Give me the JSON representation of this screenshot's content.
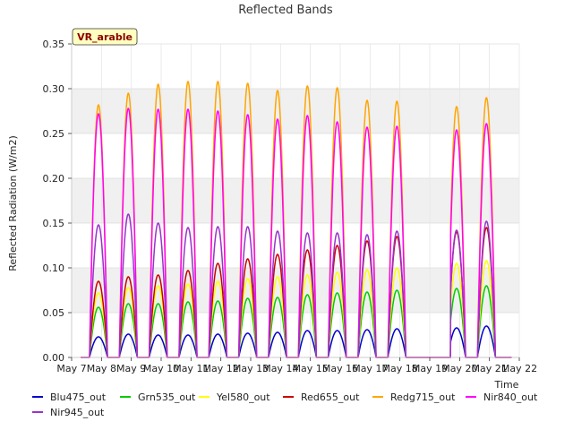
{
  "chart_data": {
    "type": "line",
    "title": "Reflected Bands",
    "xlabel": "Time",
    "ylabel": "Reflected Radiation (W/m2)",
    "badge": "VR_arable",
    "ylim": [
      0,
      0.35
    ],
    "yticks": [
      "0.00",
      "0.05",
      "0.10",
      "0.15",
      "0.20",
      "0.25",
      "0.30",
      "0.35"
    ],
    "xticks": [
      "May 7",
      "May 8",
      "May 9",
      "May 10",
      "May 11",
      "May 12",
      "May 13",
      "May 14",
      "May 15",
      "May 16",
      "May 17",
      "May 18",
      "May 19",
      "May 20",
      "May 21",
      "May 22"
    ],
    "xlim_days": [
      7,
      22
    ],
    "data_range_days": [
      7.3,
      21.75
    ],
    "gap_days": [
      18.3,
      19.7
    ],
    "daily_peak_days": [
      7.9,
      8.9,
      9.9,
      10.9,
      11.9,
      12.9,
      13.9,
      14.9,
      15.9,
      16.9,
      17.9,
      19.9,
      20.9
    ],
    "grid": true,
    "legend_position": "bottom",
    "series": [
      {
        "name": "Blu475_out",
        "color": "#0000cc",
        "peaks": [
          0.023,
          0.026,
          0.025,
          0.025,
          0.026,
          0.027,
          0.028,
          0.03,
          0.03,
          0.031,
          0.032,
          0.033,
          0.035
        ]
      },
      {
        "name": "Grn535_out",
        "color": "#00cc00",
        "peaks": [
          0.056,
          0.06,
          0.06,
          0.062,
          0.063,
          0.066,
          0.067,
          0.07,
          0.072,
          0.073,
          0.075,
          0.077,
          0.08
        ]
      },
      {
        "name": "Yel580_out",
        "color": "#ffff00",
        "peaks": [
          0.072,
          0.078,
          0.08,
          0.082,
          0.085,
          0.088,
          0.09,
          0.092,
          0.095,
          0.098,
          0.1,
          0.105,
          0.108
        ]
      },
      {
        "name": "Red655_out",
        "color": "#cc0000",
        "peaks": [
          0.085,
          0.09,
          0.092,
          0.097,
          0.105,
          0.11,
          0.115,
          0.12,
          0.125,
          0.13,
          0.135,
          0.14,
          0.145
        ]
      },
      {
        "name": "Redg715_out",
        "color": "#ffa500",
        "peaks": [
          0.282,
          0.295,
          0.305,
          0.308,
          0.308,
          0.306,
          0.298,
          0.303,
          0.301,
          0.287,
          0.286,
          0.28,
          0.29
        ]
      },
      {
        "name": "Nir840_out",
        "color": "#ff00ff",
        "peaks": [
          0.272,
          0.278,
          0.277,
          0.277,
          0.275,
          0.271,
          0.266,
          0.27,
          0.263,
          0.257,
          0.258,
          0.254,
          0.261
        ]
      },
      {
        "name": "Nir945_out",
        "color": "#9933cc",
        "peaks": [
          0.148,
          0.16,
          0.15,
          0.145,
          0.146,
          0.146,
          0.141,
          0.139,
          0.139,
          0.137,
          0.141,
          0.142,
          0.152
        ]
      }
    ]
  }
}
